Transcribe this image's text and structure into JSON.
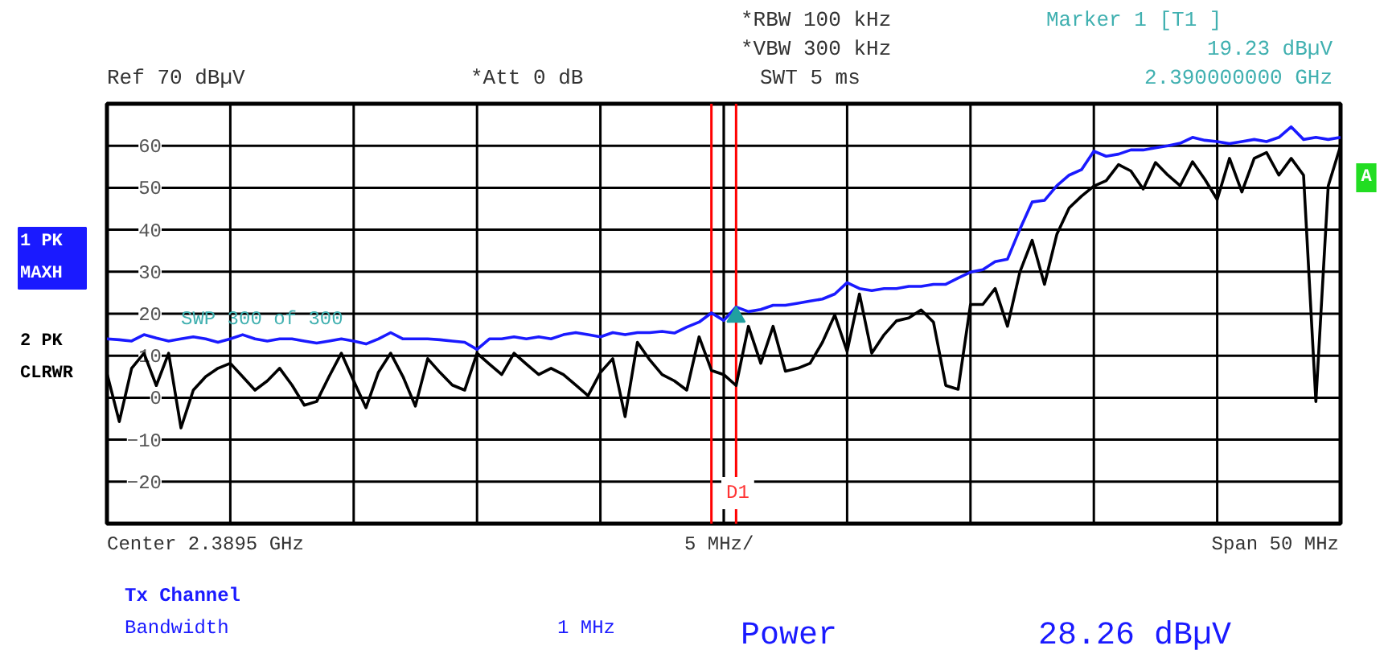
{
  "chart_data": {
    "type": "line",
    "categories": [
      null,
      null,
      null,
      null,
      null,
      null,
      null,
      null,
      null,
      null,
      null,
      null,
      null,
      null,
      null,
      null,
      null,
      null,
      null,
      null,
      null,
      null,
      null,
      null,
      null,
      null,
      null,
      null,
      null,
      null,
      null,
      null,
      null,
      null,
      null,
      null,
      null,
      null,
      null,
      null,
      null,
      null,
      null,
      null,
      null,
      null,
      null,
      null,
      null,
      null,
      null,
      null,
      null,
      null,
      null,
      null,
      null,
      null,
      null,
      null,
      null,
      null,
      null,
      null,
      null,
      null,
      null,
      null,
      null,
      null,
      null,
      null,
      null,
      null,
      null,
      null,
      null,
      null,
      null,
      null,
      null,
      null,
      null,
      null,
      null,
      null,
      null,
      null,
      null,
      null,
      null,
      null,
      null,
      null,
      null,
      null,
      null,
      null,
      null,
      null,
      null
    ],
    "ylim": [
      -30,
      70
    ],
    "yticks": [
      -20,
      -10,
      0,
      10,
      20,
      30,
      40,
      50,
      60
    ],
    "grid": true,
    "series": [
      {
        "name": "1 PK MAXH",
        "color": "#1a1aff",
        "values": [
          14,
          13.8,
          13.5,
          15,
          14.2,
          13.5,
          14,
          14.5,
          14,
          13.2,
          14,
          15,
          14,
          13.5,
          14,
          14,
          13.5,
          13,
          13.5,
          14,
          13.5,
          12.8,
          14,
          15.5,
          14,
          14,
          14,
          13.8,
          13.5,
          13.2,
          11.5,
          14,
          14,
          14.5,
          14,
          14.5,
          14,
          15,
          15.5,
          15,
          14.5,
          15.5,
          15,
          15.5,
          15.5,
          15.8,
          15.4,
          16.8,
          18,
          20.2,
          18.4,
          21.6,
          20.5,
          21,
          22,
          22,
          22.5,
          23,
          23.5,
          24.7,
          27.4,
          26,
          25.5,
          26,
          26,
          26.5,
          26.5,
          27,
          27,
          28.5,
          29.9,
          30.5,
          32.4,
          33,
          40.1,
          46.6,
          47,
          50.5,
          53,
          54.3,
          58.7,
          57.5,
          58,
          59,
          59,
          59.5,
          60,
          60.6,
          62,
          61.3,
          61,
          60.5,
          61,
          61.5,
          61,
          62,
          64.5,
          61.5,
          62,
          61.5,
          62
        ]
      },
      {
        "name": "2 PK CLRWR",
        "color": "#000000",
        "values": [
          5.8,
          -5.7,
          7,
          10.6,
          2.9,
          10.6,
          -7.2,
          1.8,
          5,
          7,
          8.2,
          5,
          1.8,
          4,
          7,
          3,
          -1.8,
          -0.9,
          5,
          10.6,
          4,
          -2.4,
          6,
          10.6,
          5,
          -2,
          9.3,
          6,
          3,
          1.8,
          10.6,
          8,
          5.5,
          10.6,
          8,
          5.5,
          7,
          5.5,
          3,
          0.5,
          6,
          9.3,
          -4.5,
          13.2,
          9,
          5.5,
          4,
          1.8,
          14.5,
          6.5,
          5.5,
          2.9,
          17,
          8.2,
          17,
          6.3,
          7,
          8.2,
          13.2,
          19.7,
          11,
          24.7,
          10.6,
          15,
          18.3,
          19,
          20.9,
          18,
          2.9,
          2,
          22.2,
          22.2,
          26,
          17,
          29.9,
          37.5,
          27,
          38.9,
          45.2,
          48,
          50.4,
          51.7,
          55.5,
          54,
          49.7,
          56,
          53,
          50.5,
          56.2,
          52,
          47.2,
          57,
          49,
          57,
          58.4,
          53,
          57,
          53,
          -0.9,
          50.4,
          60
        ]
      },
      {
        "type": "scatter",
        "marker": "triangle",
        "color": "#20a0a0",
        "values": [
          null,
          null,
          null,
          null,
          null,
          null,
          null,
          null,
          null,
          null,
          null,
          null,
          null,
          null,
          null,
          null,
          null,
          null,
          null,
          null,
          null,
          null,
          null,
          null,
          null,
          null,
          null,
          null,
          null,
          null,
          null,
          null,
          null,
          null,
          null,
          null,
          null,
          null,
          null,
          null,
          null,
          null,
          null,
          null,
          null,
          null,
          null,
          null,
          null,
          null,
          null,
          19.23,
          null,
          null,
          null,
          null,
          null,
          null,
          null,
          null,
          null,
          null,
          null,
          null,
          null,
          null,
          null,
          null,
          null,
          null,
          null,
          null,
          null,
          null,
          null,
          null,
          null,
          null,
          null,
          null,
          null,
          null,
          null,
          null,
          null,
          null,
          null,
          null,
          null,
          null,
          null,
          null,
          null,
          null,
          null,
          null,
          null,
          null,
          null,
          null,
          null
        ]
      }
    ],
    "annotations": [
      "Ref  70 dBµV",
      "*Att  0 dB",
      "*RBW 100 kHz",
      "*VBW 300 kHz",
      "SWT 5 ms",
      "Marker 1 [T1 ]",
      "19.23 dBµV",
      "2.390000000 GHz",
      "SWP  300 of  300",
      "Center 2.3895 GHz",
      "5 MHz/",
      "Span 50 MHz",
      "Tx Channel",
      "Bandwidth",
      "1 MHz",
      "Power",
      "28.26 dBµV",
      "A",
      "D1"
    ]
  }
}
